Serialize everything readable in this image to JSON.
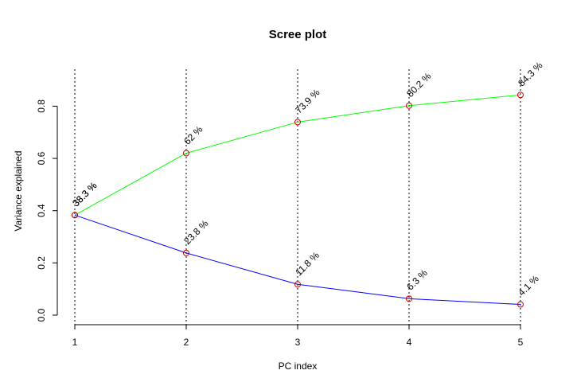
{
  "chart_data": {
    "type": "line",
    "title": "Scree plot",
    "xlabel": "PC index",
    "ylabel": "Variance explained",
    "x": [
      1,
      2,
      3,
      4,
      5
    ],
    "xticks": [
      "1",
      "2",
      "3",
      "4",
      "5"
    ],
    "yticks": [
      "0.0",
      "0.2",
      "0.4",
      "0.6",
      "0.8"
    ],
    "ylim": [
      0,
      0.85
    ],
    "vertical_guides": true,
    "grid": false,
    "marker_color": "#cc0000",
    "series": [
      {
        "key": "cumulative",
        "color": "#00ff00",
        "values": [
          0.383,
          0.62,
          0.739,
          0.802,
          0.843
        ],
        "labels": [
          "38.3 %",
          "62 %",
          "73.9 %",
          "80.2 %",
          "84.3 %"
        ]
      },
      {
        "key": "individual",
        "color": "#0000ff",
        "values": [
          0.383,
          0.238,
          0.118,
          0.063,
          0.041
        ],
        "labels": [
          "38.3 %",
          "23.8 %",
          "11.8 %",
          "6.3 %",
          "4.1 %"
        ]
      }
    ]
  }
}
